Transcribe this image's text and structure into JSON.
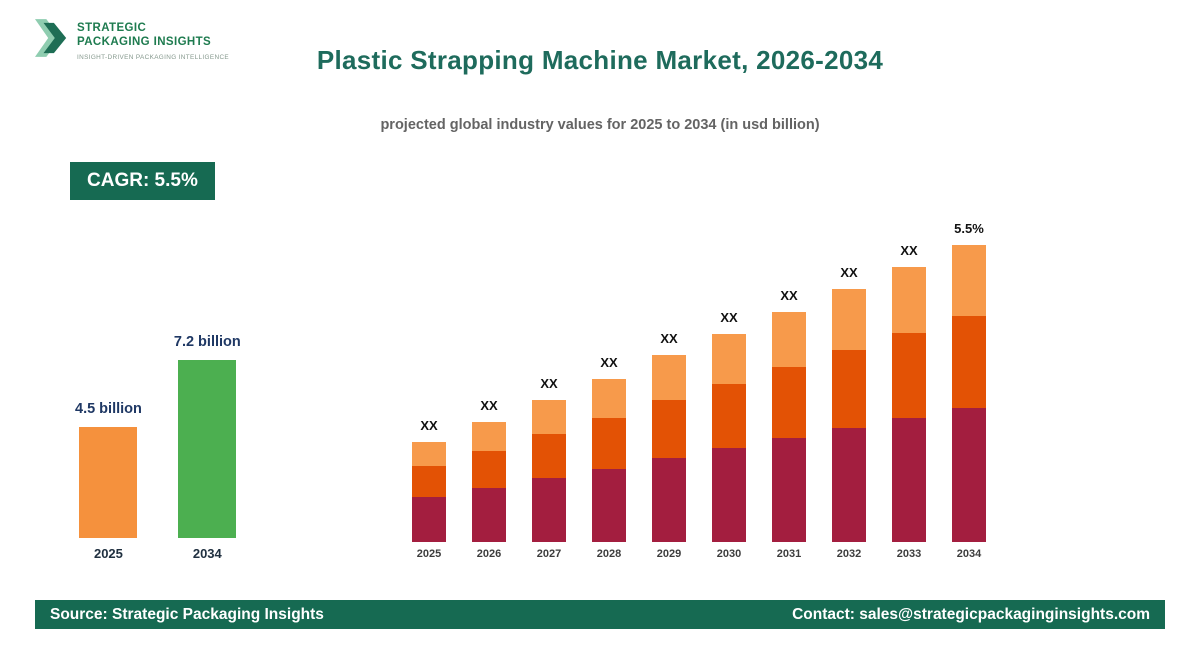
{
  "logo": {
    "line1": "STRATEGIC",
    "line2": "PACKAGING INSIGHTS",
    "tagline": "INSIGHT-DRIVEN PACKAGING INTELLIGENCE"
  },
  "header": {
    "title": "Plastic Strapping Machine Market, 2026-2034",
    "subtitle": "projected global industry values for 2025 to 2034 (in usd billion)"
  },
  "cagr_badge": "CAGR: 5.5%",
  "footer": {
    "source": "Source: Strategic Packaging Insights",
    "contact": "Contact: sales@strategicpackaginginsights.com"
  },
  "colors": {
    "brand_green": "#166a52",
    "title_teal": "#1e6b5c",
    "comparison_orange": "#f5913d",
    "comparison_green": "#4caf50",
    "stack_bottom_crimson": "#a31e3f",
    "stack_middle_orange": "#e35205",
    "stack_top_light_orange": "#f79a4b"
  },
  "chart_data": [
    {
      "type": "bar",
      "title": "2025 vs 2034 market size",
      "categories": [
        "2025",
        "2034"
      ],
      "values": [
        4.5,
        7.2
      ],
      "value_labels": [
        "4.5 billion",
        "7.2 billion"
      ],
      "colors": [
        "#f5913d",
        "#4caf50"
      ]
    },
    {
      "type": "stacked-bar",
      "categories": [
        "2025",
        "2026",
        "2027",
        "2028",
        "2029",
        "2030",
        "2031",
        "2032",
        "2033",
        "2034"
      ],
      "series": [
        {
          "name": "bottom",
          "color": "#a31e3f",
          "values": [
            45,
            54,
            64,
            73,
            84,
            94,
            104,
            114,
            124,
            134
          ]
        },
        {
          "name": "middle",
          "color": "#e35205",
          "values": [
            31,
            37,
            44,
            51,
            58,
            64,
            71,
            78,
            85,
            92
          ]
        },
        {
          "name": "top",
          "color": "#f79a4b",
          "values": [
            24,
            29,
            34,
            39,
            45,
            50,
            55,
            61,
            66,
            71
          ]
        }
      ],
      "bar_labels": [
        "XX",
        "XX",
        "XX",
        "XX",
        "XX",
        "XX",
        "XX",
        "XX",
        "XX",
        "5.5%"
      ]
    }
  ]
}
